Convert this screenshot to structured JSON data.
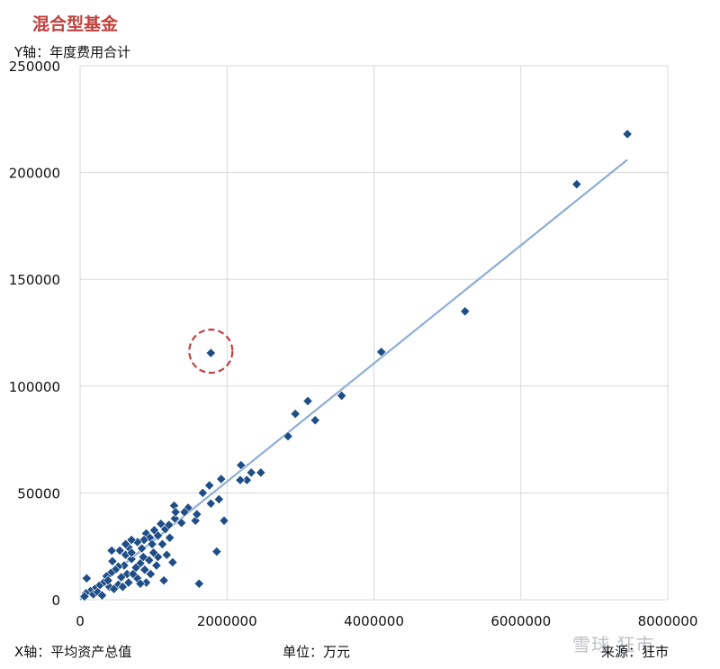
{
  "title": "混合型基金",
  "y_axis_label": "Y轴：年度费用合计",
  "x_axis_label": "X轴：平均资产总值",
  "unit_label": "单位：万元",
  "source_label": "来源：狂市",
  "watermark": "雪球 狂市",
  "colors": {
    "title": "#c0413e",
    "points": "#1f4e87",
    "trendline": "#8eaed6",
    "highlight": "#c0413e",
    "grid": "#d9d9d9"
  },
  "chart_data": {
    "type": "scatter",
    "xlim": [
      0,
      8000000
    ],
    "ylim": [
      0,
      250000
    ],
    "xticks": [
      0,
      2000000,
      4000000,
      6000000,
      8000000
    ],
    "yticks": [
      0,
      50000,
      100000,
      150000,
      200000,
      250000
    ],
    "xtick_labels": [
      "0",
      "2000000",
      "4000000",
      "6000000",
      "8000000"
    ],
    "ytick_labels": [
      "0",
      "50000",
      "100000",
      "150000",
      "200000",
      "250000"
    ],
    "grid": true,
    "trendline": {
      "x": [
        0,
        7450000
      ],
      "y": [
        0,
        206000
      ]
    },
    "highlighted_point": {
      "x": 1780000,
      "y": 115500
    },
    "points": [
      [
        7450000,
        218000
      ],
      [
        6760000,
        194500
      ],
      [
        5240000,
        135000
      ],
      [
        4100000,
        116000
      ],
      [
        1780000,
        115500
      ],
      [
        3560000,
        95500
      ],
      [
        3100000,
        93000
      ],
      [
        2930000,
        87000
      ],
      [
        3200000,
        84000
      ],
      [
        2830000,
        76500
      ],
      [
        2460000,
        59500
      ],
      [
        2190000,
        63000
      ],
      [
        2330000,
        59500
      ],
      [
        2270000,
        56000
      ],
      [
        2180000,
        56000
      ],
      [
        1920000,
        56500
      ],
      [
        1760000,
        53500
      ],
      [
        1670000,
        50000
      ],
      [
        1890000,
        47000
      ],
      [
        1780000,
        45000
      ],
      [
        1280000,
        44000
      ],
      [
        1470000,
        43000
      ],
      [
        1960000,
        37000
      ],
      [
        1420000,
        41000
      ],
      [
        1570000,
        37000
      ],
      [
        1590000,
        40000
      ],
      [
        1380000,
        36000
      ],
      [
        1100000,
        35500
      ],
      [
        1160000,
        33000
      ],
      [
        1010000,
        32500
      ],
      [
        900000,
        31000
      ],
      [
        950000,
        29000
      ],
      [
        1290000,
        38000
      ],
      [
        1210000,
        35000
      ],
      [
        1300000,
        41000
      ],
      [
        1060000,
        30000
      ],
      [
        870000,
        28000
      ],
      [
        780000,
        27000
      ],
      [
        700000,
        28000
      ],
      [
        660000,
        24500
      ],
      [
        620000,
        21000
      ],
      [
        540000,
        23000
      ],
      [
        430000,
        23000
      ],
      [
        1860000,
        22500
      ],
      [
        1060000,
        20000
      ],
      [
        940000,
        18500
      ],
      [
        1260000,
        17500
      ],
      [
        820000,
        17000
      ],
      [
        760000,
        15000
      ],
      [
        700000,
        19000
      ],
      [
        600000,
        16000
      ],
      [
        520000,
        15500
      ],
      [
        480000,
        14000
      ],
      [
        420000,
        12500
      ],
      [
        360000,
        11000
      ],
      [
        880000,
        14000
      ],
      [
        960000,
        12000
      ],
      [
        1000000,
        22000
      ],
      [
        640000,
        12000
      ],
      [
        560000,
        10500
      ],
      [
        780000,
        10000
      ],
      [
        1140000,
        9000
      ],
      [
        900000,
        8000
      ],
      [
        820000,
        7500
      ],
      [
        1620000,
        7500
      ],
      [
        660000,
        8000
      ],
      [
        520000,
        7000
      ],
      [
        400000,
        6000
      ],
      [
        320000,
        8000
      ],
      [
        260000,
        6500
      ],
      [
        200000,
        5000
      ],
      [
        140000,
        4000
      ],
      [
        90000,
        10000
      ],
      [
        80000,
        3000
      ],
      [
        60000,
        1500
      ],
      [
        180000,
        2500
      ],
      [
        240000,
        3500
      ],
      [
        460000,
        5000
      ],
      [
        580000,
        6000
      ],
      [
        720000,
        12000
      ],
      [
        300000,
        2000
      ],
      [
        380000,
        9000
      ],
      [
        440000,
        18000
      ],
      [
        620000,
        26000
      ],
      [
        700000,
        22000
      ],
      [
        840000,
        24000
      ],
      [
        980000,
        26000
      ],
      [
        1120000,
        26000
      ],
      [
        1180000,
        21000
      ],
      [
        1040000,
        16000
      ],
      [
        860000,
        20000
      ],
      [
        1220000,
        29000
      ]
    ]
  }
}
